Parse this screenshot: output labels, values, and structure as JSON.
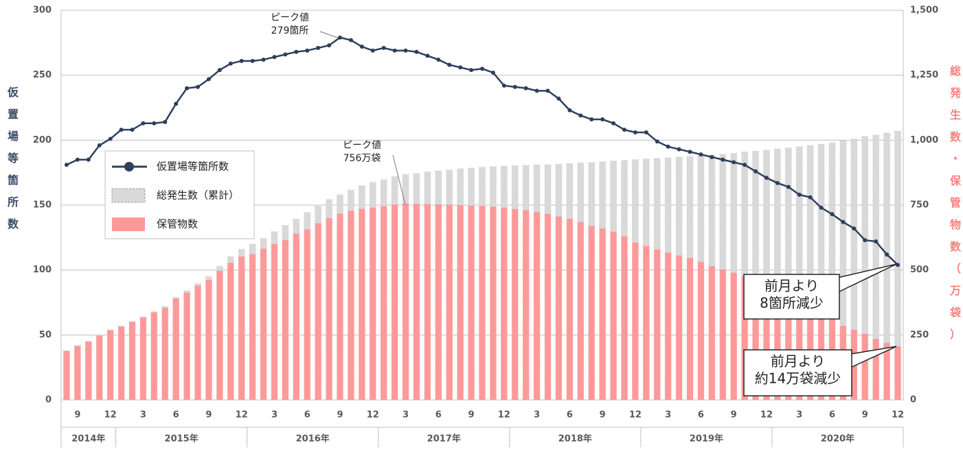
{
  "chart_data": {
    "type": "combo",
    "categories": [
      null,
      "9",
      null,
      null,
      "12",
      null,
      null,
      "3",
      null,
      null,
      "6",
      null,
      null,
      "9",
      null,
      null,
      "12",
      null,
      null,
      "3",
      null,
      null,
      "6",
      null,
      null,
      "9",
      null,
      null,
      "12",
      null,
      null,
      "3",
      null,
      null,
      "6",
      null,
      null,
      "9",
      null,
      null,
      "12",
      null,
      null,
      "3",
      null,
      null,
      "6",
      null,
      null,
      "9",
      null,
      null,
      "12",
      null,
      null,
      "3",
      null,
      null,
      "6",
      null,
      null,
      "9",
      null,
      null,
      "12",
      null,
      null,
      "3",
      null,
      null,
      "6",
      null,
      null,
      "9",
      null,
      null,
      "12"
    ],
    "years": [
      "2014年",
      "2015年",
      "2016年",
      "2017年",
      "2018年",
      "2019年",
      "2020年"
    ],
    "y_label": "仮置場等箇所数",
    "y2_label": "総発生数・保管物数（万袋）",
    "ylim": [
      0,
      300
    ],
    "yticks": [
      0,
      50,
      100,
      150,
      200,
      250,
      300
    ],
    "y2lim": [
      0,
      1500
    ],
    "y2ticks": [
      0,
      250,
      500,
      750,
      {
        "value": 1000,
        "label": "1,000"
      },
      {
        "value": 1250,
        "label": "1,250"
      },
      {
        "value": 1500,
        "label": "1,500"
      }
    ],
    "grid": true,
    "series": [
      {
        "name": "仮置場等箇所数",
        "type": "line",
        "color": "#2e3f5c",
        "values": [
          181,
          185,
          185,
          196,
          201,
          208,
          208,
          213,
          213,
          214,
          228,
          240,
          241,
          247,
          254,
          259,
          261,
          261,
          262,
          264,
          266,
          268,
          269,
          271,
          273,
          279,
          277,
          272,
          269,
          271,
          269,
          269,
          268,
          265,
          262,
          258,
          256,
          254,
          255,
          252,
          242,
          241,
          240,
          238,
          238,
          232,
          223,
          219,
          216,
          216,
          213,
          208,
          206,
          206,
          199,
          195,
          193,
          191,
          189,
          187,
          185,
          183,
          181,
          176,
          171,
          167,
          164,
          158,
          156,
          148,
          143,
          137,
          132,
          123,
          122,
          112,
          104
        ]
      },
      {
        "name": "総発生数（累計）",
        "type": "bar",
        "axis": "y2",
        "color": "#d9d9d9",
        "values": [
          190,
          210,
          226,
          248,
          270,
          285,
          302,
          320,
          340,
          360,
          395,
          420,
          448,
          475,
          515,
          552,
          580,
          600,
          622,
          648,
          672,
          696,
          722,
          746,
          772,
          790,
          808,
          825,
          838,
          848,
          860,
          868,
          872,
          878,
          882,
          886,
          890,
          893,
          896,
          898,
          900,
          902,
          903,
          905,
          906,
          908,
          910,
          912,
          914,
          917,
          920,
          922,
          925,
          928,
          930,
          932,
          935,
          938,
          940,
          943,
          946,
          950,
          955,
          958,
          962,
          966,
          970,
          975,
          980,
          985,
          990,
          998,
          1005,
          1015,
          1020,
          1028,
          1035
        ]
      },
      {
        "name": "保管物数",
        "type": "bar",
        "axis": "y2",
        "color": "#ff9999",
        "values": [
          188,
          207,
          224,
          246,
          268,
          282,
          300,
          317,
          337,
          355,
          390,
          413,
          440,
          462,
          497,
          528,
          552,
          561,
          582,
          600,
          615,
          640,
          656,
          680,
          700,
          717,
          728,
          736,
          740,
          746,
          752,
          756,
          755,
          754,
          753,
          752,
          750,
          748,
          747,
          744,
          740,
          735,
          730,
          723,
          716,
          706,
          697,
          685,
          670,
          660,
          648,
          630,
          605,
          593,
          579,
          567,
          556,
          546,
          532,
          515,
          502,
          490,
          475,
          455,
          440,
          420,
          400,
          380,
          360,
          335,
          310,
          285,
          270,
          255,
          235,
          220,
          206
        ]
      }
    ],
    "annotations": [
      {
        "lines": [
          "ピーク値",
          "279箇所"
        ]
      },
      {
        "lines": [
          "ピーク値",
          "756万袋"
        ]
      },
      {
        "lines": [
          "前月より",
          "8箇所減少"
        ]
      },
      {
        "lines": [
          "前月より",
          "約14万袋減少"
        ]
      }
    ]
  }
}
